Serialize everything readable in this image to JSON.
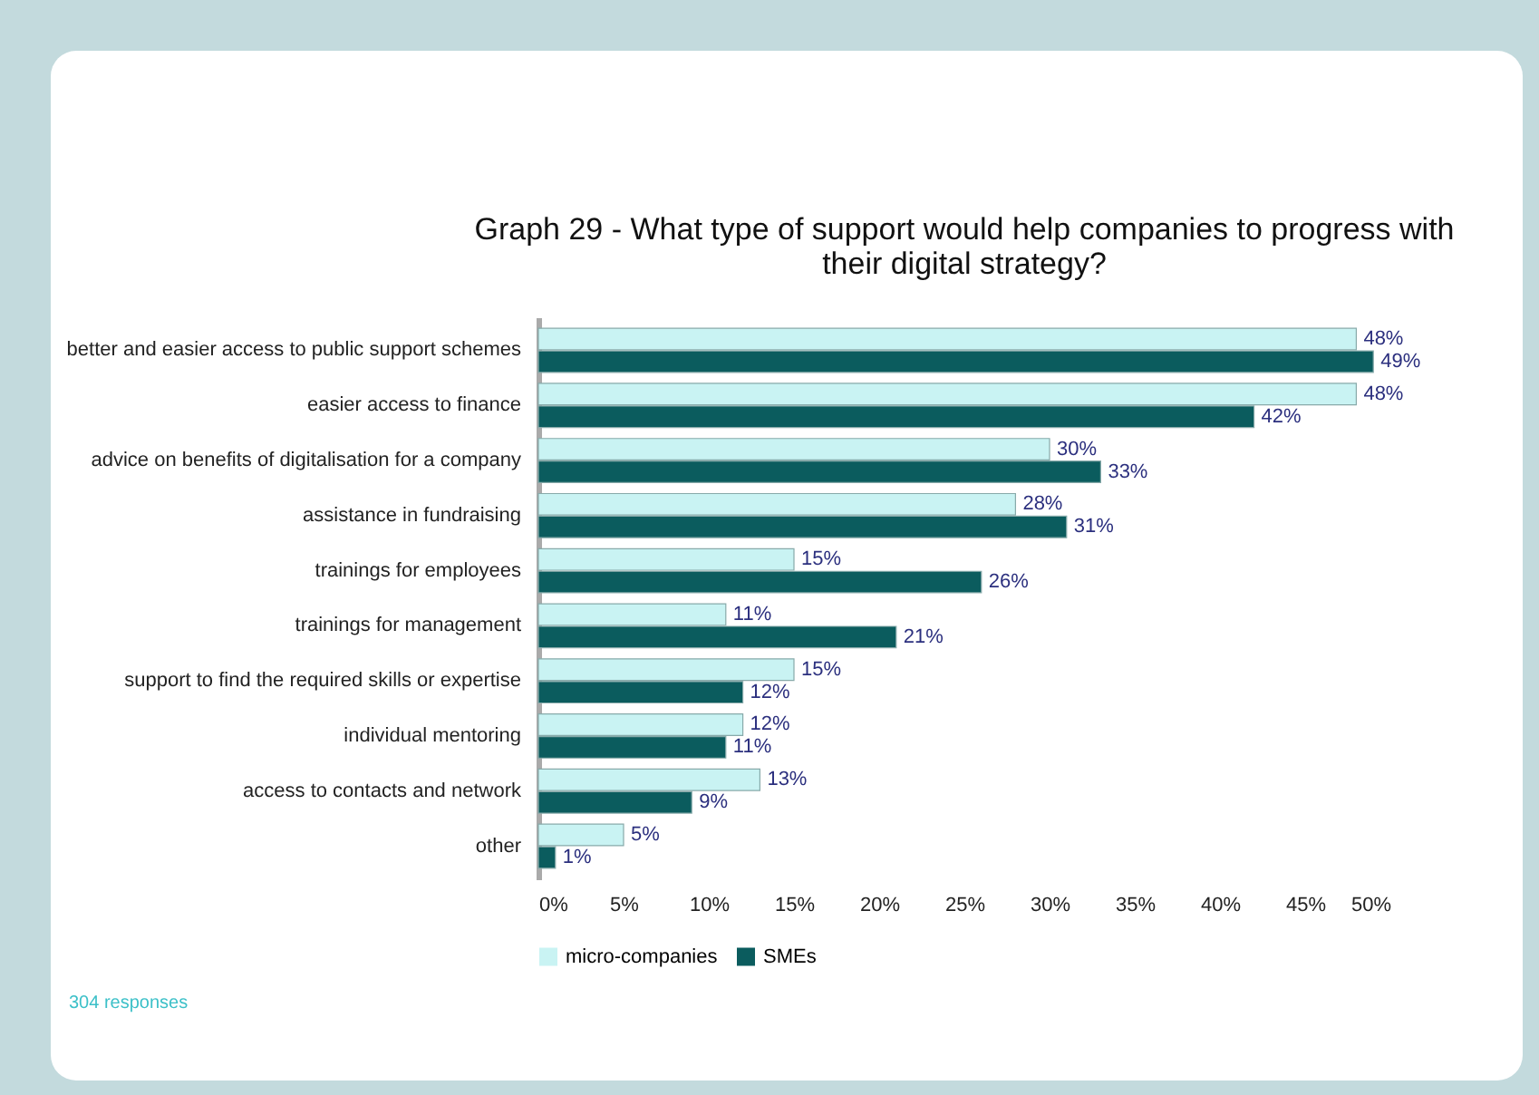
{
  "chart_data": {
    "type": "bar",
    "orientation": "horizontal",
    "title": "Graph 29 -  What type of support would help companies to progress with their digital strategy?",
    "categories": [
      "better and easier access to public support schemes",
      "easier access to finance",
      "advice on benefits of digitalisation for a company",
      "assistance in fundraising",
      "trainings for employees",
      "trainings for management",
      "support to find the required skills or expertise",
      "individual mentoring",
      "access to contacts and network",
      "other"
    ],
    "series": [
      {
        "name": "micro-companies",
        "color": "#c9f3f3",
        "values": [
          48,
          48,
          30,
          28,
          15,
          11,
          15,
          12,
          13,
          5
        ],
        "value_labels": [
          "48%",
          "48%",
          "30%",
          "28%",
          "15%",
          "11%",
          "15%",
          "12%",
          "13%",
          "5%"
        ]
      },
      {
        "name": "SMEs",
        "color": "#0b5c5e",
        "values": [
          49,
          42,
          33,
          31,
          26,
          21,
          12,
          11,
          9,
          1
        ],
        "value_labels": [
          "49%",
          "42%",
          "33%",
          "31%",
          "26%",
          "21%",
          "12%",
          "11%",
          "9%",
          "1%"
        ]
      }
    ],
    "xlim": [
      0,
      50
    ],
    "xticks": [
      {
        "value": 0,
        "label": "0%"
      },
      {
        "value": 5,
        "label": "5%"
      },
      {
        "value": 10,
        "label": "10%"
      },
      {
        "value": 15,
        "label": "15%"
      },
      {
        "value": 20,
        "label": "20%"
      },
      {
        "value": 25,
        "label": "25%"
      },
      {
        "value": 30,
        "label": "30%"
      },
      {
        "value": 35,
        "label": "35%"
      },
      {
        "value": 40,
        "label": "40%"
      },
      {
        "value": 45,
        "label": "45%"
      },
      {
        "value": 50,
        "label": "50%"
      }
    ],
    "grid": false,
    "legend": "bottom",
    "annotations": [
      "304 responses"
    ]
  }
}
